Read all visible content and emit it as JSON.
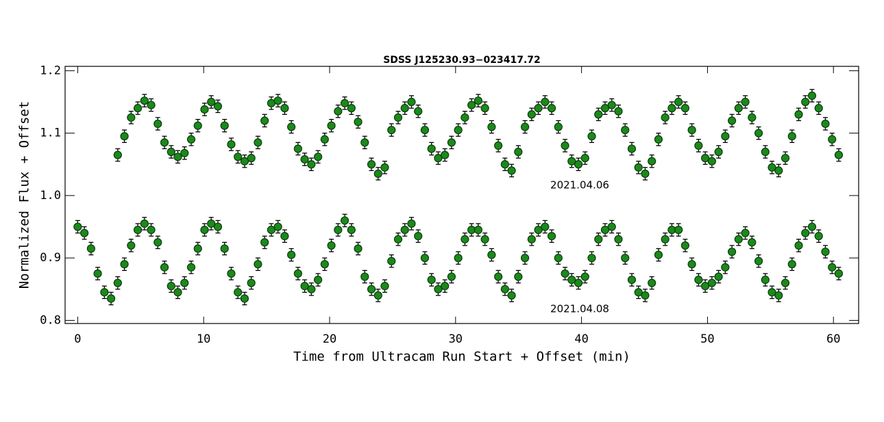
{
  "chart_data": {
    "type": "scatter",
    "title": "SDSS J125230.93−023417.72",
    "x_label": "Time from Ultracam Run Start + Offset (min)",
    "y_label": "Normalized Flux + Offset",
    "annotations": [
      "2021.04.06",
      "2021.04.08"
    ],
    "xlim": [
      -1,
      62
    ],
    "ylim": [
      0.795,
      1.207
    ],
    "xticks": [
      0,
      10,
      20,
      30,
      40,
      50,
      60
    ],
    "yticks": [
      0.8,
      0.9,
      {
        "value": 1,
        "label": "1.0"
      },
      1.1,
      1.2
    ],
    "series": [
      {
        "color": "#1a8a1a",
        "error": 0.01,
        "x": [
          3.18,
          3.71,
          4.24,
          4.77,
          5.3,
          5.83,
          6.36,
          6.89,
          7.42,
          7.95,
          8.48,
          9.01,
          9.54,
          10.07,
          10.6,
          11.13,
          11.66,
          12.19,
          12.72,
          13.25,
          13.78,
          14.31,
          14.84,
          15.37,
          15.9,
          16.43,
          16.96,
          17.49,
          18.02,
          18.55,
          19.08,
          19.61,
          20.14,
          20.67,
          21.2,
          21.73,
          22.26,
          22.79,
          23.32,
          23.85,
          24.38,
          24.91,
          25.44,
          25.97,
          26.5,
          27.03,
          27.56,
          28.09,
          28.62,
          29.15,
          29.68,
          30.21,
          30.74,
          31.27,
          31.8,
          32.33,
          32.86,
          33.39,
          33.92,
          34.45,
          34.98,
          35.51,
          36.04,
          36.57,
          37.1,
          37.63,
          38.16,
          38.69,
          39.22,
          39.75,
          40.28,
          40.81,
          41.34,
          41.87,
          42.4,
          42.93,
          43.46,
          43.99,
          44.52,
          45.05,
          45.58,
          46.11,
          46.64,
          47.17,
          47.7,
          48.23,
          48.76,
          49.29,
          49.82,
          50.35,
          50.88,
          51.41,
          51.94,
          52.47,
          53.0,
          53.53,
          54.06,
          54.59,
          55.12,
          55.65,
          56.18,
          56.71,
          57.24,
          57.77,
          58.3,
          58.83,
          59.36,
          59.89,
          60.42
        ],
        "values": [
          1.065,
          1.095,
          1.125,
          1.14,
          1.152,
          1.145,
          1.115,
          1.085,
          1.07,
          1.062,
          1.068,
          1.09,
          1.112,
          1.138,
          1.15,
          1.143,
          1.112,
          1.082,
          1.062,
          1.055,
          1.06,
          1.085,
          1.12,
          1.148,
          1.152,
          1.14,
          1.11,
          1.075,
          1.058,
          1.05,
          1.062,
          1.09,
          1.112,
          1.135,
          1.148,
          1.14,
          1.118,
          1.085,
          1.05,
          1.035,
          1.045,
          1.105,
          1.125,
          1.14,
          1.15,
          1.135,
          1.105,
          1.075,
          1.06,
          1.065,
          1.085,
          1.105,
          1.125,
          1.145,
          1.152,
          1.14,
          1.11,
          1.08,
          1.05,
          1.04,
          1.07,
          1.11,
          1.13,
          1.14,
          1.15,
          1.14,
          1.11,
          1.08,
          1.055,
          1.05,
          1.06,
          1.095,
          1.13,
          1.14,
          1.145,
          1.135,
          1.105,
          1.075,
          1.045,
          1.035,
          1.055,
          1.09,
          1.125,
          1.14,
          1.15,
          1.14,
          1.105,
          1.08,
          1.06,
          1.055,
          1.07,
          1.095,
          1.12,
          1.14,
          1.15,
          1.125,
          1.1,
          1.07,
          1.045,
          1.04,
          1.06,
          1.095,
          1.13,
          1.15,
          1.16,
          1.14,
          1.115,
          1.09,
          1.065
        ]
      },
      {
        "color": "#1a8a1a",
        "error": 0.01,
        "x": [
          0.0,
          0.53,
          1.06,
          1.59,
          2.12,
          2.65,
          3.18,
          3.71,
          4.24,
          4.77,
          5.3,
          5.83,
          6.36,
          6.89,
          7.42,
          7.95,
          8.48,
          9.01,
          9.54,
          10.07,
          10.6,
          11.13,
          11.66,
          12.19,
          12.72,
          13.25,
          13.78,
          14.31,
          14.84,
          15.37,
          15.9,
          16.43,
          16.96,
          17.49,
          18.02,
          18.55,
          19.08,
          19.61,
          20.14,
          20.67,
          21.2,
          21.73,
          22.26,
          22.79,
          23.32,
          23.85,
          24.38,
          24.91,
          25.44,
          25.97,
          26.5,
          27.03,
          27.56,
          28.09,
          28.62,
          29.15,
          29.68,
          30.21,
          30.74,
          31.27,
          31.8,
          32.33,
          32.86,
          33.39,
          33.92,
          34.45,
          34.98,
          35.51,
          36.04,
          36.57,
          37.1,
          37.63,
          38.16,
          38.69,
          39.22,
          39.75,
          40.28,
          40.81,
          41.34,
          41.87,
          42.4,
          42.93,
          43.46,
          43.99,
          44.52,
          45.05,
          45.58,
          46.11,
          46.64,
          47.17,
          47.7,
          48.23,
          48.76,
          49.29,
          49.82,
          50.35,
          50.88,
          51.41,
          51.94,
          52.47,
          53.0,
          53.53,
          54.06,
          54.59,
          55.12,
          55.65,
          56.18,
          56.71,
          57.24,
          57.77,
          58.3,
          58.83,
          59.36,
          59.89,
          60.42
        ],
        "values": [
          0.95,
          0.94,
          0.915,
          0.875,
          0.845,
          0.835,
          0.86,
          0.89,
          0.92,
          0.945,
          0.955,
          0.945,
          0.925,
          0.885,
          0.855,
          0.845,
          0.86,
          0.885,
          0.915,
          0.945,
          0.955,
          0.95,
          0.915,
          0.875,
          0.845,
          0.835,
          0.86,
          0.89,
          0.925,
          0.945,
          0.95,
          0.935,
          0.905,
          0.875,
          0.855,
          0.85,
          0.865,
          0.89,
          0.92,
          0.945,
          0.96,
          0.945,
          0.915,
          0.87,
          0.85,
          0.84,
          0.855,
          0.895,
          0.93,
          0.945,
          0.955,
          0.935,
          0.9,
          0.865,
          0.85,
          0.855,
          0.87,
          0.9,
          0.93,
          0.945,
          0.945,
          0.93,
          0.905,
          0.87,
          0.85,
          0.84,
          0.87,
          0.9,
          0.93,
          0.945,
          0.95,
          0.935,
          0.9,
          0.875,
          0.865,
          0.86,
          0.87,
          0.9,
          0.93,
          0.945,
          0.95,
          0.93,
          0.9,
          0.865,
          0.845,
          0.84,
          0.86,
          0.905,
          0.93,
          0.945,
          0.945,
          0.92,
          0.89,
          0.865,
          0.855,
          0.86,
          0.87,
          0.885,
          0.91,
          0.93,
          0.94,
          0.925,
          0.895,
          0.865,
          0.845,
          0.84,
          0.86,
          0.89,
          0.92,
          0.94,
          0.95,
          0.935,
          0.91,
          0.885,
          0.875
        ]
      }
    ]
  }
}
